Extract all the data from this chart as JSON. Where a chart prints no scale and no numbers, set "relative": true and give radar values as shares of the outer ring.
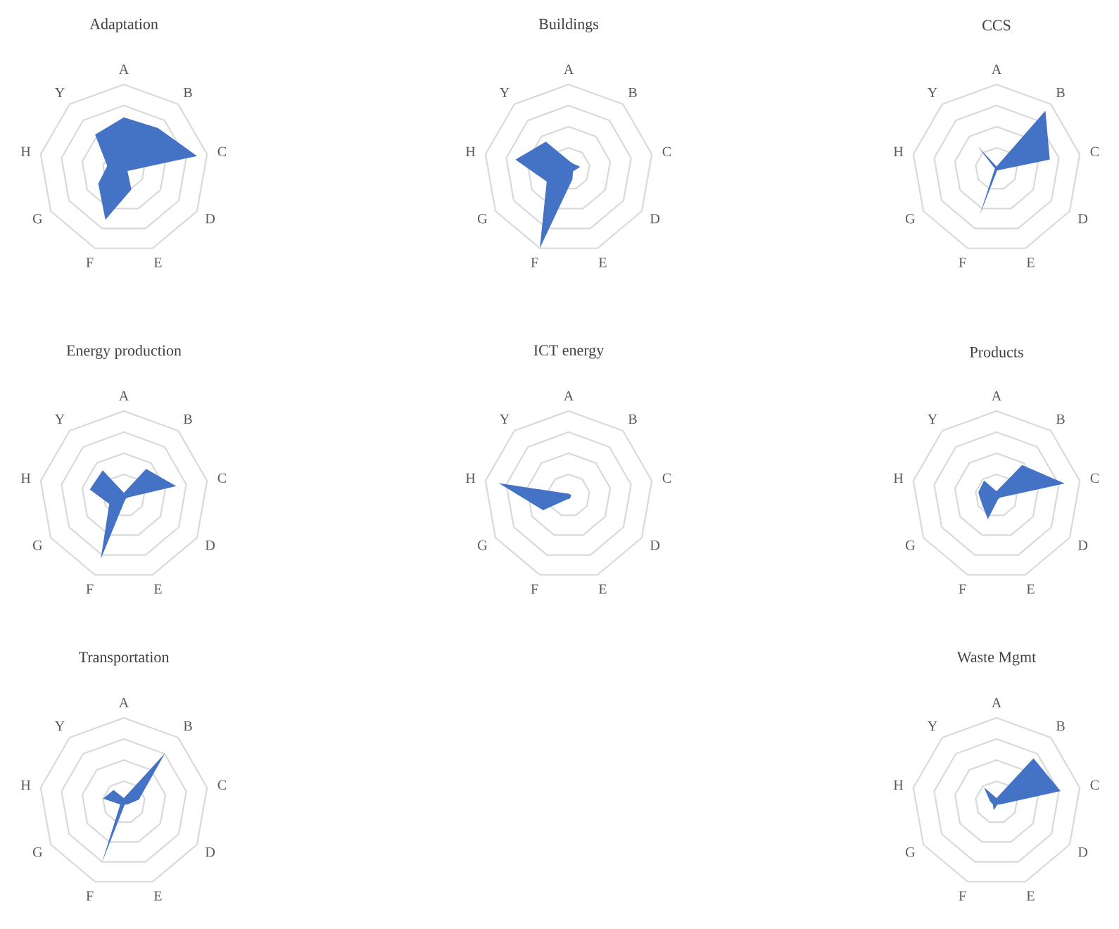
{
  "chart_data": [
    {
      "type": "radar",
      "title": "Adaptation",
      "categories": [
        "A",
        "B",
        "C",
        "D",
        "E",
        "F",
        "G",
        "H",
        "Y"
      ],
      "relative": true,
      "grid": true,
      "series": [
        {
          "color": "#4472c4",
          "values": [
            0.61,
            0.63,
            0.88,
            0.05,
            0.26,
            0.64,
            0.35,
            0.2,
            0.53
          ]
        }
      ]
    },
    {
      "type": "radar",
      "title": "Buildings",
      "categories": [
        "A",
        "B",
        "C",
        "D",
        "E",
        "F",
        "G",
        "H",
        "Y"
      ],
      "relative": true,
      "grid": true,
      "series": [
        {
          "color": "#4472c4",
          "values": [
            0.1,
            0.08,
            0.14,
            0.06,
            0.13,
            1.0,
            0.3,
            0.64,
            0.42
          ]
        }
      ]
    },
    {
      "type": "radar",
      "title": "CCS",
      "categories": [
        "A",
        "B",
        "C",
        "D",
        "E",
        "F",
        "G",
        "H",
        "Y"
      ],
      "relative": true,
      "grid": true,
      "series": [
        {
          "color": "#4472c4",
          "values": [
            0.03,
            0.9,
            0.64,
            0.03,
            0.02,
            0.59,
            0.03,
            0.02,
            0.35
          ]
        }
      ]
    },
    {
      "type": "radar",
      "title": "Energy production",
      "categories": [
        "A",
        "B",
        "C",
        "D",
        "E",
        "F",
        "G",
        "H",
        "Y"
      ],
      "relative": true,
      "grid": true,
      "series": [
        {
          "color": "#4472c4",
          "values": [
            0.03,
            0.41,
            0.63,
            0.05,
            0.05,
            0.8,
            0.2,
            0.41,
            0.39
          ]
        }
      ]
    },
    {
      "type": "radar",
      "title": "ICT energy",
      "categories": [
        "A",
        "B",
        "C",
        "D",
        "E",
        "F",
        "G",
        "H",
        "Y"
      ],
      "relative": true,
      "grid": true,
      "series": [
        {
          "color": "#4472c4",
          "values": [
            0.02,
            0.02,
            0.03,
            0.03,
            0.04,
            0.05,
            0.35,
            0.84,
            0.03
          ]
        }
      ]
    },
    {
      "type": "radar",
      "title": "Products",
      "categories": [
        "A",
        "B",
        "C",
        "D",
        "E",
        "F",
        "G",
        "H",
        "Y"
      ],
      "relative": true,
      "grid": true,
      "series": [
        {
          "color": "#4472c4",
          "values": [
            0.05,
            0.47,
            0.82,
            0.05,
            0.05,
            0.3,
            0.2,
            0.22,
            0.23
          ]
        }
      ]
    },
    {
      "type": "radar",
      "title": "Transportation",
      "categories": [
        "A",
        "B",
        "C",
        "D",
        "E",
        "F",
        "G",
        "H",
        "Y"
      ],
      "relative": true,
      "grid": true,
      "series": [
        {
          "color": "#4472c4",
          "values": [
            0.05,
            0.76,
            0.18,
            0.05,
            0.03,
            0.76,
            0.05,
            0.25,
            0.19
          ]
        }
      ]
    },
    {
      "type": "radar",
      "title": "Waste Mgmt",
      "categories": [
        "A",
        "B",
        "C",
        "D",
        "E",
        "F",
        "G",
        "H",
        "Y"
      ],
      "relative": true,
      "grid": true,
      "series": [
        {
          "color": "#4472c4",
          "values": [
            0.05,
            0.68,
            0.77,
            0.05,
            0.03,
            0.1,
            0.05,
            0.08,
            0.23
          ]
        }
      ]
    }
  ]
}
